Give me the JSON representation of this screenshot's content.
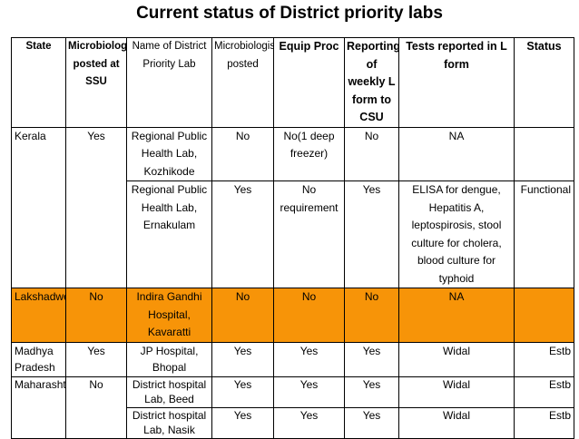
{
  "title": "Current status of District priority labs",
  "headers": {
    "state": "State",
    "microbiologist_ssu": "Microbiologist posted at SSU",
    "lab_name": "Name of District Priority Lab",
    "microbiologist_posted": "Microbiologist posted",
    "equip_proc": "Equip Proc",
    "reporting": "Reporting of weekly L form to CSU",
    "tests": "Tests reported in L form",
    "status": "Status"
  },
  "rows": [
    {
      "state": "Kerala",
      "ssu": "Yes",
      "lab": "Regional Public Health Lab, Kozhikode",
      "posted": "No",
      "equip": "No(1 deep freezer)",
      "reporting": "No",
      "tests": "NA",
      "status": ""
    },
    {
      "state": "",
      "ssu": "",
      "lab": "Regional Public Health Lab, Ernakulam",
      "posted": "Yes",
      "equip": "No requirement",
      "reporting": "Yes",
      "tests": "ELISA for dengue, Hepatitis A, leptospirosis, stool culture for cholera, blood culture for typhoid",
      "status": "Functional"
    },
    {
      "state": "Lakshadweep",
      "ssu": "No",
      "lab": "Indira Gandhi Hospital, Kavaratti",
      "posted": "No",
      "equip": "No",
      "reporting": "No",
      "tests": "NA",
      "status": ""
    },
    {
      "state": "Madhya Pradesh",
      "ssu": "Yes",
      "lab": "JP Hospital, Bhopal",
      "posted": "Yes",
      "equip": "Yes",
      "reporting": "Yes",
      "tests": "Widal",
      "status": "Estb"
    },
    {
      "state": "Maharashtra",
      "ssu": "No",
      "lab": "District hospital Lab, Beed",
      "posted": "Yes",
      "equip": "Yes",
      "reporting": "Yes",
      "tests": "Widal",
      "status": "Estb"
    },
    {
      "state": "",
      "ssu": "",
      "lab": "District hospital Lab, Nasik",
      "posted": "Yes",
      "equip": "Yes",
      "reporting": "Yes",
      "tests": "Widal",
      "status": "Estb"
    }
  ],
  "highlight_color": "#f79408"
}
